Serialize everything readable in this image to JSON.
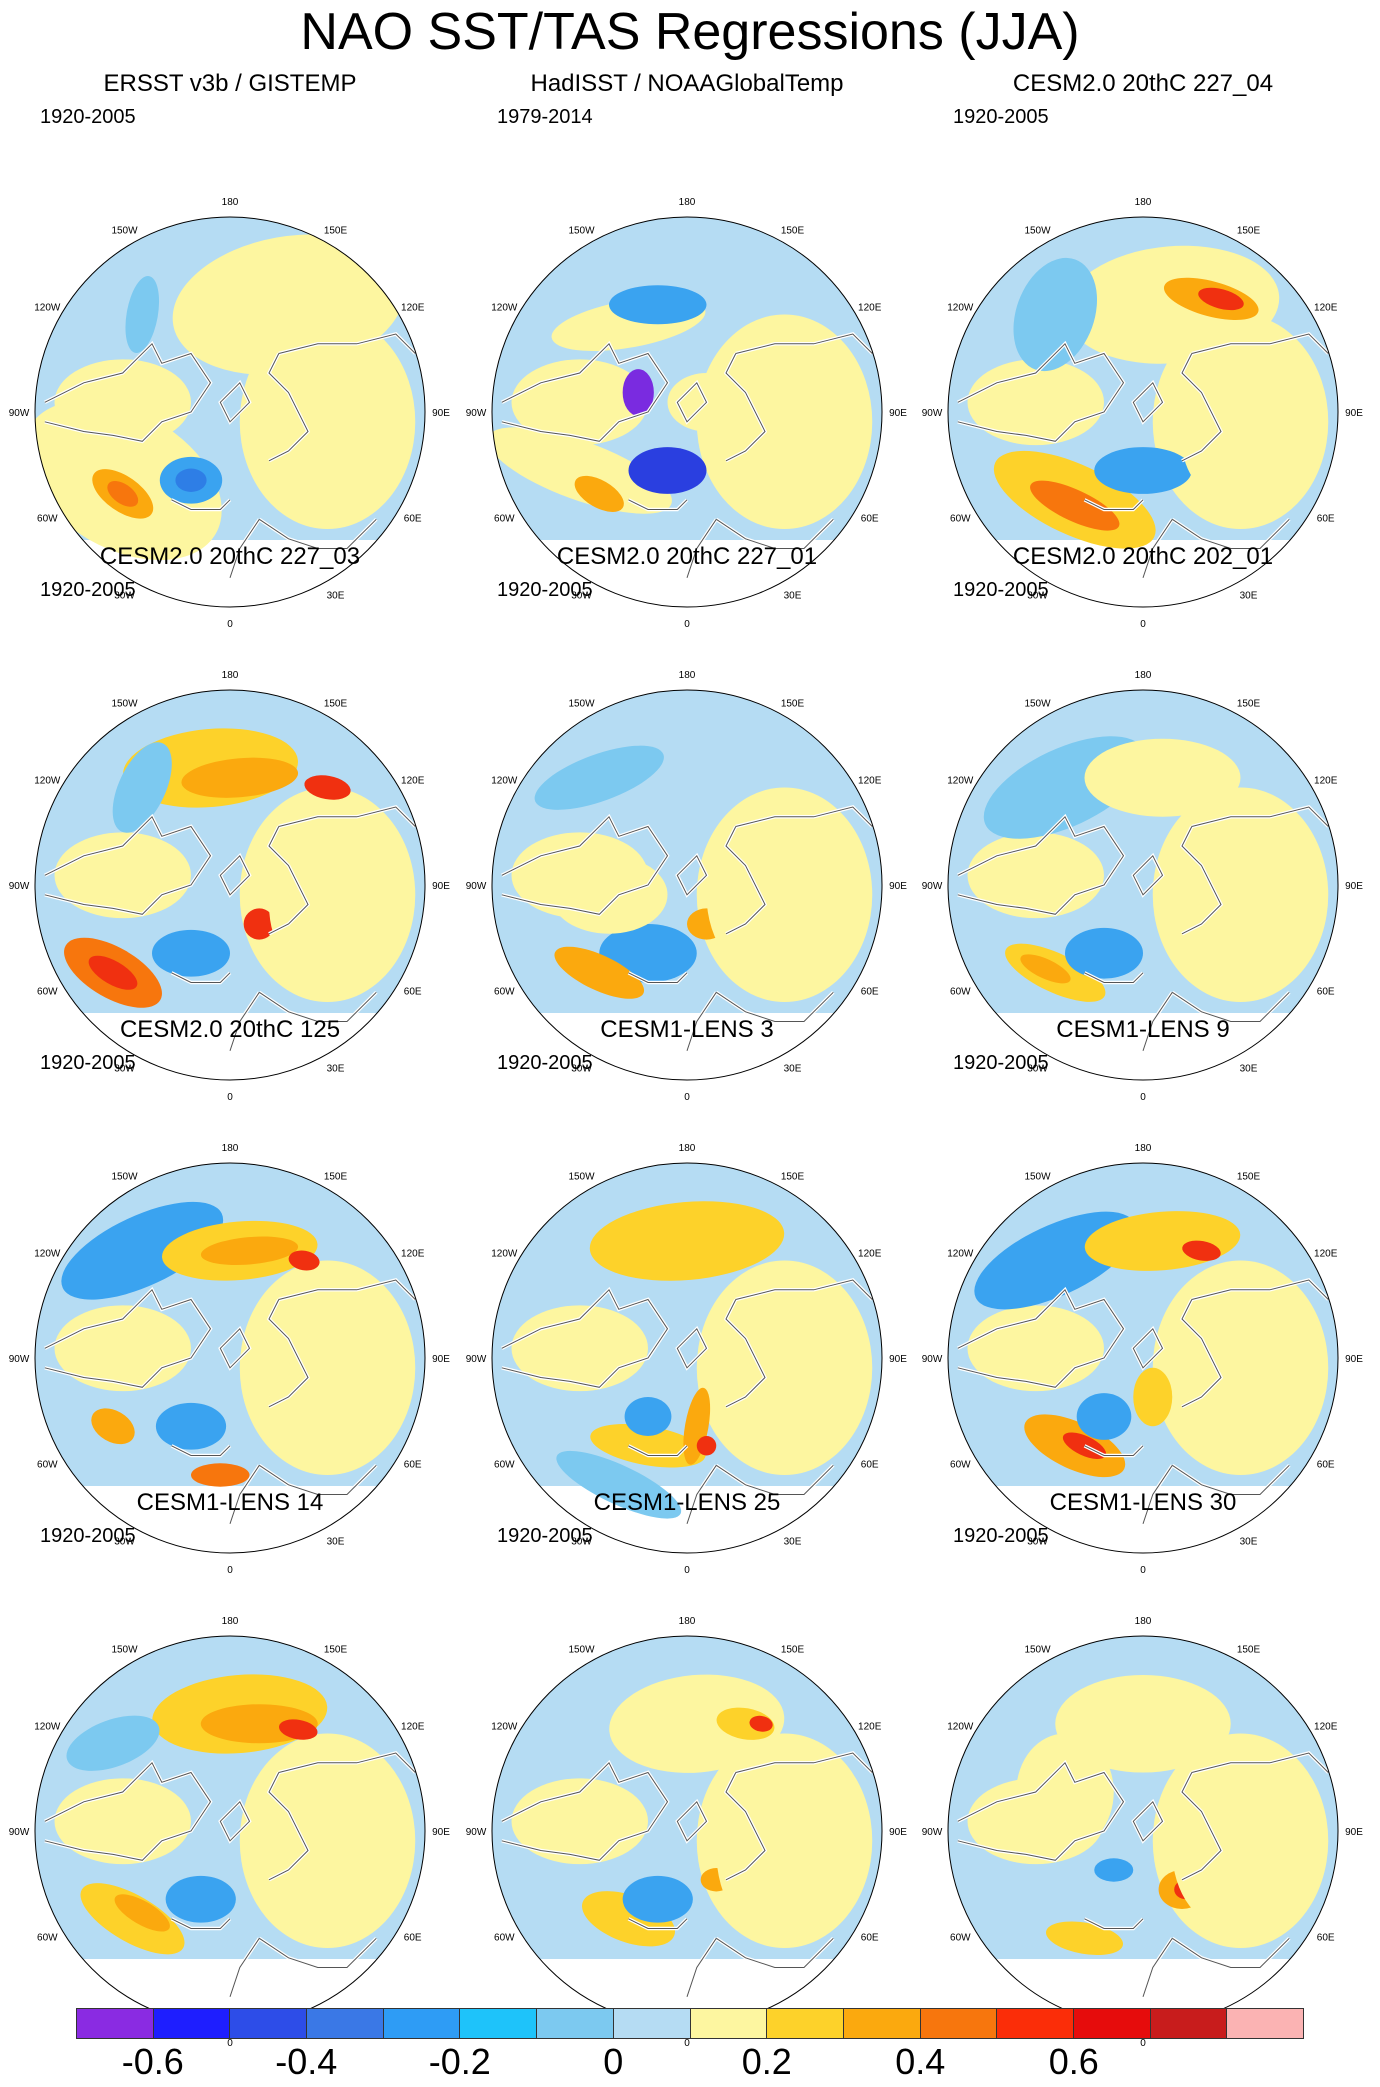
{
  "title": "NAO SST/TAS Regressions (JJA)",
  "lon_labels": [
    "180",
    "150E",
    "120E",
    "90E",
    "60E",
    "30E",
    "0",
    "30W",
    "60W",
    "90W",
    "120W",
    "150W"
  ],
  "panels": [
    {
      "title": "ERSST v3b / GISTEMP",
      "period": "1920-2005",
      "variant": 0
    },
    {
      "title": "HadISST / NOAAGlobalTemp",
      "period": "1979-2014",
      "variant": 1
    },
    {
      "title": "CESM2.0 20thC 227_04",
      "period": "1920-2005",
      "variant": 2
    },
    {
      "title": "CESM2.0 20thC 227_03",
      "period": "1920-2005",
      "variant": 3
    },
    {
      "title": "CESM2.0 20thC 227_01",
      "period": "1920-2005",
      "variant": 4
    },
    {
      "title": "CESM2.0 20thC 202_01",
      "period": "1920-2005",
      "variant": 5
    },
    {
      "title": "CESM2.0 20thC 125",
      "period": "1920-2005",
      "variant": 6
    },
    {
      "title": "CESM1-LENS 3",
      "period": "1920-2005",
      "variant": 7
    },
    {
      "title": "CESM1-LENS 9",
      "period": "1920-2005",
      "variant": 8
    },
    {
      "title": "CESM1-LENS 14",
      "period": "1920-2005",
      "variant": 9
    },
    {
      "title": "CESM1-LENS 25",
      "period": "1920-2005",
      "variant": 10
    },
    {
      "title": "CESM1-LENS 30",
      "period": "1920-2005",
      "variant": 11
    }
  ],
  "colorbar": {
    "colors": [
      "#8a2be2",
      "#1e1eff",
      "#2d4de8",
      "#3a78e6",
      "#2e9cf5",
      "#1ec3fa",
      "#7cc9f0",
      "#b5dcf3",
      "#fdf6a0",
      "#fdd22a",
      "#fba90e",
      "#f7760d",
      "#fb2d08",
      "#e60c0c",
      "#c81c1c",
      "#fbb3b3"
    ],
    "labels": [
      "-0.6",
      "-0.4",
      "-0.2",
      "0",
      "0.2",
      "0.4",
      "0.6"
    ]
  }
}
